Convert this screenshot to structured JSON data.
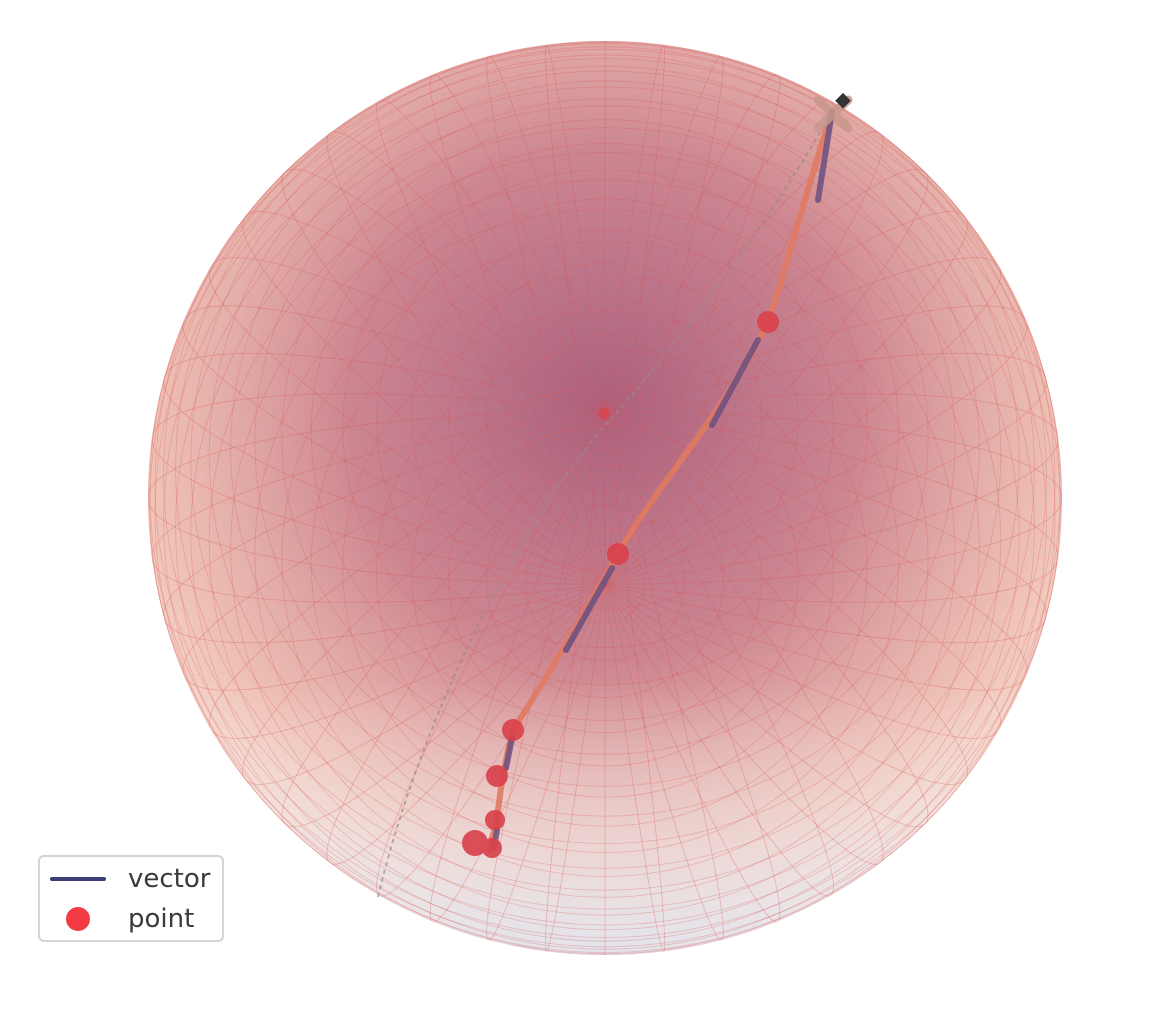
{
  "legend": {
    "vector": {
      "label": "vector",
      "color": "#3c3f73"
    },
    "point": {
      "label": "point",
      "color": "#f23b45"
    }
  },
  "colors": {
    "sphere_top": "#f3c6b2",
    "sphere_mid": "#c77080",
    "sphere_dark": "#a85a7a",
    "sphere_bottom": "#dfe6f2",
    "grid": "#d9534f",
    "path": "#e07a62",
    "vector": "#6a4f80",
    "point": "#d9404a",
    "marker": "#333333"
  }
}
